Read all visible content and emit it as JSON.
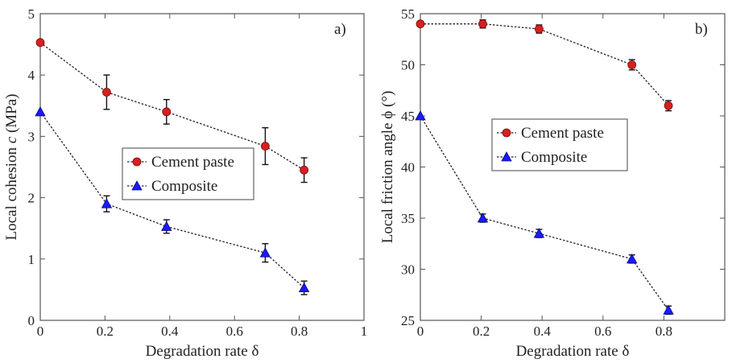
{
  "chart_data": [
    {
      "type": "line",
      "panel_label": "a)",
      "xlabel": "Degradation rate δ",
      "ylabel_prefix": "Local cohesion ",
      "ylabel_symbol": "c",
      "ylabel_suffix": " (MPa)",
      "xlim": [
        0,
        1
      ],
      "ylim": [
        0,
        5
      ],
      "xticks": [
        0,
        0.2,
        0.4,
        0.6,
        0.8,
        1
      ],
      "xtick_labels": [
        "0",
        "0.2",
        "0.4",
        "0.6",
        "0.8",
        "1"
      ],
      "yticks": [
        0,
        1,
        2,
        3,
        4,
        5
      ],
      "ytick_labels": [
        "0",
        "1",
        "2",
        "3",
        "4",
        "5"
      ],
      "legend_position": "center-right",
      "series": [
        {
          "name": "Cement paste",
          "marker": "circle",
          "color": "#d62020",
          "x": [
            0,
            0.205,
            0.39,
            0.695,
            0.815
          ],
          "y": [
            4.53,
            3.72,
            3.4,
            2.84,
            2.45
          ],
          "err": [
            0,
            0.28,
            0.2,
            0.3,
            0.2
          ]
        },
        {
          "name": "Composite",
          "marker": "triangle",
          "color": "#1a1aff",
          "x": [
            0,
            0.205,
            0.39,
            0.695,
            0.815
          ],
          "y": [
            3.4,
            1.9,
            1.53,
            1.1,
            0.53
          ],
          "err": [
            0,
            0.13,
            0.11,
            0.15,
            0.11
          ]
        }
      ]
    },
    {
      "type": "line",
      "panel_label": "b)",
      "xlabel": "Degradation rate δ",
      "ylabel_prefix": "Local friction angle ϕ (°)",
      "ylabel_symbol": "",
      "ylabel_suffix": "",
      "xlim": [
        0,
        1
      ],
      "ylim": [
        25,
        55
      ],
      "xticks": [
        0,
        0.2,
        0.4,
        0.6,
        0.8
      ],
      "xtick_labels": [
        "0",
        "0.2",
        "0.4",
        "0.6",
        "0.8"
      ],
      "yticks": [
        25,
        30,
        35,
        40,
        45,
        50,
        55
      ],
      "ytick_labels": [
        "25",
        "30",
        "35",
        "40",
        "45",
        "50",
        "55"
      ],
      "legend_position": "center-left",
      "series": [
        {
          "name": "Cement paste",
          "marker": "circle",
          "color": "#d62020",
          "x": [
            0,
            0.205,
            0.39,
            0.695,
            0.815
          ],
          "y": [
            54.0,
            54.0,
            53.5,
            50.0,
            46.0
          ],
          "err": [
            0,
            0.4,
            0.4,
            0.5,
            0.5
          ]
        },
        {
          "name": "Composite",
          "marker": "triangle",
          "color": "#1a1aff",
          "x": [
            0,
            0.205,
            0.39,
            0.695,
            0.815
          ],
          "y": [
            45.0,
            35.0,
            33.5,
            31.0,
            26.0
          ],
          "err": [
            0,
            0.4,
            0.4,
            0.4,
            0.4
          ]
        }
      ]
    }
  ]
}
